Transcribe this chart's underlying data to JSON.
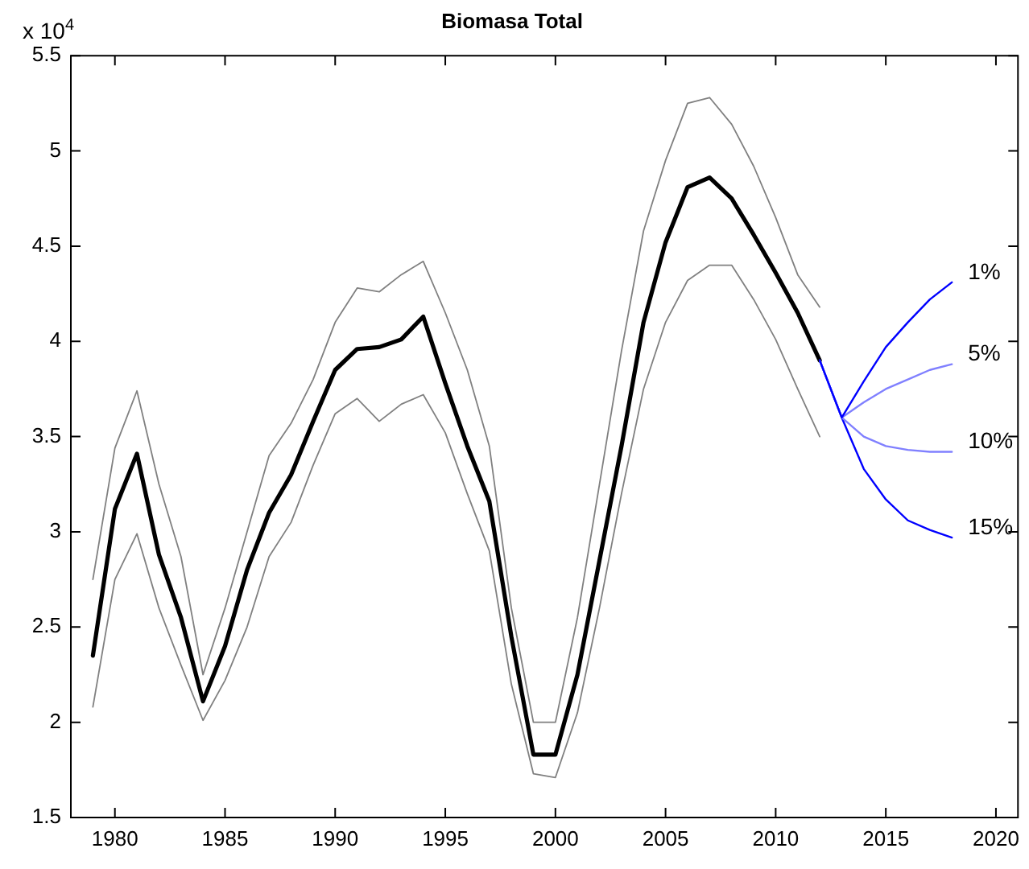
{
  "chart_data": {
    "type": "line",
    "title": "Biomasa Total",
    "annotations": [
      "x 10$^{4}$"
    ],
    "xlim": [
      1978,
      2021
    ],
    "xticks": [
      1980,
      1985,
      1990,
      1995,
      2000,
      2005,
      2010,
      2015,
      2020
    ],
    "ylim": [
      1.5,
      5.5
    ],
    "yticks": [
      1.5,
      2,
      2.5,
      3,
      3.5,
      4,
      4.5,
      5,
      5.5
    ],
    "grid": false,
    "legend": false,
    "marker": "none",
    "line_style": "solid",
    "x": [
      1979,
      1980,
      1981,
      1982,
      1983,
      1984,
      1985,
      1986,
      1987,
      1988,
      1989,
      1990,
      1991,
      1992,
      1993,
      1994,
      1995,
      1996,
      1997,
      1998,
      1999,
      2000,
      2001,
      2002,
      2003,
      2004,
      2005,
      2006,
      2007,
      2008,
      2009,
      2010,
      2011,
      2012
    ],
    "series": [
      {
        "color": "#808080",
        "values": [
          2.75,
          3.44,
          3.74,
          3.25,
          2.87,
          2.25,
          2.6,
          3.0,
          3.4,
          3.57,
          3.8,
          4.1,
          4.28,
          4.26,
          4.35,
          4.42,
          4.15,
          3.85,
          3.45,
          2.6,
          2.0,
          2.0,
          2.55,
          3.25,
          3.95,
          4.58,
          4.95,
          5.25,
          5.28,
          5.14,
          4.92,
          4.65,
          4.35,
          4.18
        ]
      },
      {
        "color": "#808080",
        "values": [
          2.08,
          2.75,
          2.99,
          2.6,
          2.3,
          2.01,
          2.22,
          2.5,
          2.87,
          3.05,
          3.35,
          3.62,
          3.7,
          3.58,
          3.67,
          3.72,
          3.52,
          3.2,
          2.9,
          2.2,
          1.73,
          1.71,
          2.05,
          2.6,
          3.2,
          3.75,
          4.1,
          4.32,
          4.4,
          4.4,
          4.22,
          4.01,
          3.75,
          3.5
        ]
      },
      {
        "color": "#000000",
        "values": [
          2.35,
          3.12,
          3.41,
          2.88,
          2.55,
          2.11,
          2.4,
          2.8,
          3.1,
          3.3,
          3.58,
          3.85,
          3.96,
          3.97,
          4.01,
          4.13,
          3.78,
          3.45,
          3.16,
          2.45,
          1.83,
          1.83,
          2.25,
          2.85,
          3.45,
          4.1,
          4.52,
          4.81,
          4.86,
          4.75,
          4.56,
          4.36,
          4.15,
          3.9
        ]
      },
      {
        "name": "1%",
        "color": "#0000ff",
        "x": [
          2012,
          2013,
          2014,
          2015,
          2016,
          2017,
          2018
        ],
        "values": [
          3.9,
          3.6,
          3.79,
          3.97,
          4.1,
          4.22,
          4.31
        ]
      },
      {
        "name": "5%",
        "color": "#8080ff",
        "x": [
          2012,
          2013,
          2014,
          2015,
          2016,
          2017,
          2018
        ],
        "values": [
          3.9,
          3.6,
          3.68,
          3.75,
          3.8,
          3.85,
          3.88
        ]
      },
      {
        "name": "10%",
        "color": "#8080ff",
        "x": [
          2012,
          2013,
          2014,
          2015,
          2016,
          2017,
          2018
        ],
        "values": [
          3.9,
          3.6,
          3.5,
          3.45,
          3.43,
          3.42,
          3.42
        ]
      },
      {
        "name": "15%",
        "color": "#0000ff",
        "x": [
          2012,
          2013,
          2014,
          2015,
          2016,
          2017,
          2018
        ],
        "values": [
          3.9,
          3.6,
          3.33,
          3.17,
          3.06,
          3.01,
          2.97
        ]
      }
    ]
  }
}
